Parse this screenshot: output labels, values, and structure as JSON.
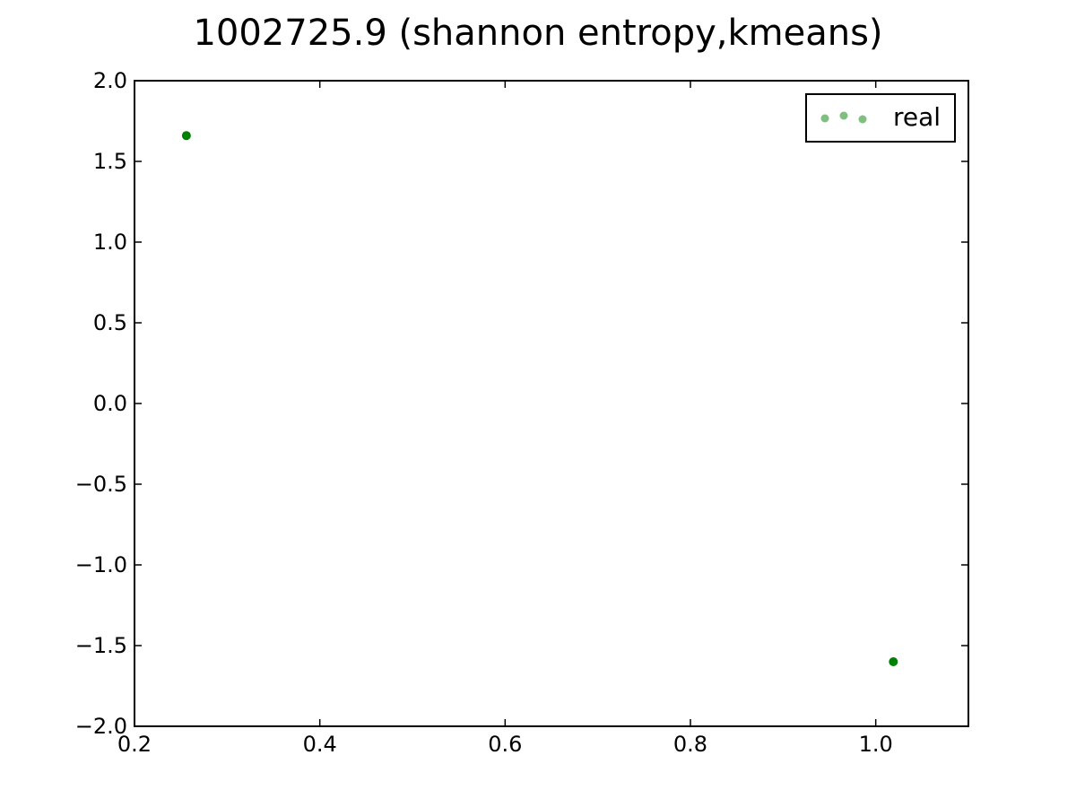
{
  "chart_data": {
    "type": "scatter",
    "title": "1002725.9 (shannon entropy,kmeans)",
    "xlabel": "",
    "ylabel": "",
    "xlim": [
      0.2,
      1.1
    ],
    "ylim": [
      -2.0,
      2.0
    ],
    "x_ticks": [
      "0.2",
      "0.4",
      "0.6",
      "0.8",
      "1.0"
    ],
    "x_tick_values": [
      0.2,
      0.4,
      0.6,
      0.8,
      1.0
    ],
    "y_ticks": [
      "2.0",
      "1.5",
      "1.0",
      "0.5",
      "0.0",
      "−0.5",
      "−1.0",
      "−1.5",
      "−2.0"
    ],
    "y_tick_values": [
      2.0,
      1.5,
      1.0,
      0.5,
      0.0,
      -0.5,
      -1.0,
      -1.5,
      -2.0
    ],
    "grid": false,
    "legend_position": "top-right",
    "series": [
      {
        "name": "real",
        "color": "#008000",
        "legend_color": "#7fbf7f",
        "points": [
          {
            "x": 0.256,
            "y": 1.66
          },
          {
            "x": 1.019,
            "y": -1.6
          }
        ]
      }
    ]
  }
}
